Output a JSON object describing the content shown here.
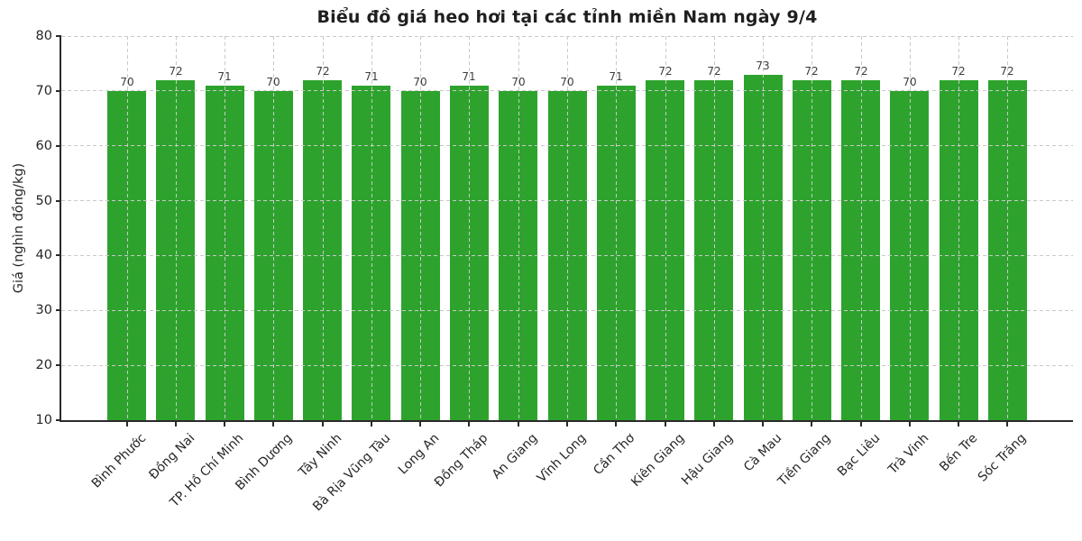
{
  "chart_data": {
    "type": "bar",
    "title": "Biểu đồ giá heo hơi tại các tỉnh miền Nam ngày 9/4",
    "xlabel": "",
    "ylabel": "Giá (nghìn đồng/kg)",
    "categories": [
      "Bình Phước",
      "Đồng Nai",
      "TP. Hồ Chí Minh",
      "Bình Dương",
      "Tây Ninh",
      "Bà Rịa Vũng Tàu",
      "Long An",
      "Đồng Tháp",
      "An Giang",
      "Vĩnh Long",
      "Cần Thơ",
      "Kiên Giang",
      "Hậu Giang",
      "Cà Mau",
      "Tiền Giang",
      "Bạc Liêu",
      "Trà Vinh",
      "Bến Tre",
      "Sóc Trăng"
    ],
    "values": [
      70,
      72,
      71,
      70,
      72,
      71,
      70,
      71,
      70,
      70,
      71,
      72,
      72,
      73,
      72,
      72,
      70,
      72,
      72
    ],
    "ylim": [
      10,
      80
    ],
    "yticks": [
      10,
      20,
      30,
      40,
      50,
      60,
      70,
      80
    ],
    "bar_width_ratio": 0.8,
    "value_labels_shown": true,
    "grid": {
      "style": "dashed",
      "axes": "both",
      "drawn_over_bars": true
    },
    "legend_position": "none",
    "x_tick_label_rotation_deg": 45
  },
  "colors": {
    "background": "#ffffff",
    "bar": "#2da32d",
    "grid": "#c9c9c9",
    "spine": "#2a2a2a",
    "title_text": "#1f1f1f",
    "tick_text": "#262626",
    "value_text": "#3d3d3d"
  }
}
